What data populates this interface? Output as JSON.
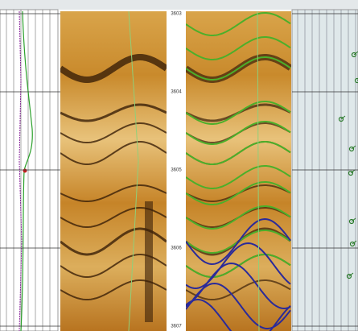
{
  "depth_track": {
    "labels": [
      "3603",
      "3604",
      "3605",
      "3606",
      "3607"
    ]
  }
}
